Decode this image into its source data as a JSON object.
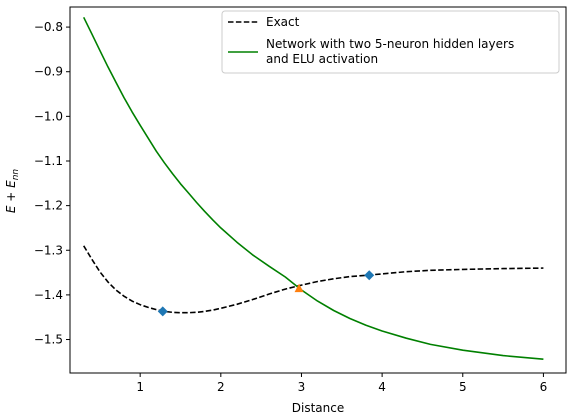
{
  "chart_data": {
    "type": "line",
    "xlabel": "Distance",
    "ylabel": "E + E_nn",
    "xlim": [
      0.13,
      6.28
    ],
    "ylim": [
      -1.575,
      -0.755
    ],
    "xticks": [
      1,
      2,
      3,
      4,
      5,
      6
    ],
    "yticks": [
      -1.5,
      -1.4,
      -1.3,
      -1.2,
      -1.1,
      -1.0,
      -0.9,
      -0.8
    ],
    "grid": false,
    "legend_position": "top-right",
    "series": [
      {
        "name": "Exact",
        "style": "dashed",
        "color": "#000000",
        "x": [
          0.3,
          0.4,
          0.5,
          0.6,
          0.7,
          0.8,
          0.9,
          1.0,
          1.1,
          1.2,
          1.3,
          1.4,
          1.5,
          1.6,
          1.7,
          1.8,
          1.9,
          2.0,
          2.2,
          2.4,
          2.6,
          2.8,
          3.0,
          3.2,
          3.4,
          3.6,
          3.8,
          4.0,
          4.3,
          4.6,
          5.0,
          5.5,
          6.0
        ],
        "y": [
          -1.29,
          -1.32,
          -1.348,
          -1.371,
          -1.389,
          -1.403,
          -1.414,
          -1.422,
          -1.428,
          -1.433,
          -1.437,
          -1.439,
          -1.44,
          -1.44,
          -1.439,
          -1.437,
          -1.434,
          -1.43,
          -1.421,
          -1.41,
          -1.398,
          -1.387,
          -1.378,
          -1.37,
          -1.364,
          -1.359,
          -1.356,
          -1.353,
          -1.348,
          -1.345,
          -1.343,
          -1.341,
          -1.34
        ]
      },
      {
        "name": "Network with two 5-neuron hidden layers\nand ELU activation",
        "style": "solid",
        "color": "#008000",
        "x": [
          0.3,
          0.4,
          0.5,
          0.6,
          0.7,
          0.8,
          0.9,
          1.0,
          1.1,
          1.2,
          1.3,
          1.4,
          1.5,
          1.6,
          1.7,
          1.8,
          1.9,
          2.0,
          2.2,
          2.4,
          2.6,
          2.8,
          3.0,
          3.2,
          3.4,
          3.6,
          3.8,
          4.0,
          4.3,
          4.6,
          5.0,
          5.5,
          6.0
        ],
        "y": [
          -0.778,
          -0.815,
          -0.852,
          -0.889,
          -0.924,
          -0.958,
          -0.99,
          -1.02,
          -1.049,
          -1.078,
          -1.104,
          -1.128,
          -1.151,
          -1.172,
          -1.193,
          -1.213,
          -1.232,
          -1.25,
          -1.282,
          -1.311,
          -1.336,
          -1.36,
          -1.389,
          -1.414,
          -1.435,
          -1.453,
          -1.468,
          -1.481,
          -1.497,
          -1.511,
          -1.524,
          -1.536,
          -1.544
        ]
      }
    ],
    "markers": [
      {
        "x": 1.28,
        "y": -1.437,
        "shape": "diamond",
        "color": "#1f77b4"
      },
      {
        "x": 3.84,
        "y": -1.356,
        "shape": "diamond",
        "color": "#1f77b4"
      },
      {
        "x": 2.97,
        "y": -1.386,
        "shape": "triangle",
        "color": "#ff7f0e"
      }
    ]
  }
}
